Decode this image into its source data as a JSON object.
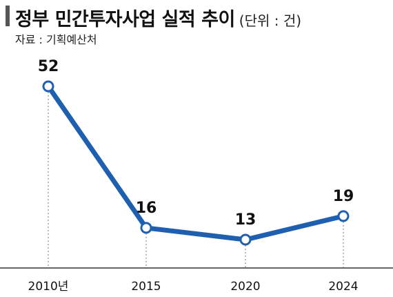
{
  "chart_data": {
    "type": "line",
    "title": "정부 민간투자사업 실적 추이",
    "unit": "(단위 : 건)",
    "source": "자료 : 기획예산처",
    "categories": [
      "2010년",
      "2015",
      "2020",
      "2024"
    ],
    "values": [
      52,
      16,
      13,
      19
    ],
    "value_labels": [
      "52",
      "16",
      "13",
      "19"
    ],
    "line_color": "#1f5fb0",
    "grid": false
  }
}
